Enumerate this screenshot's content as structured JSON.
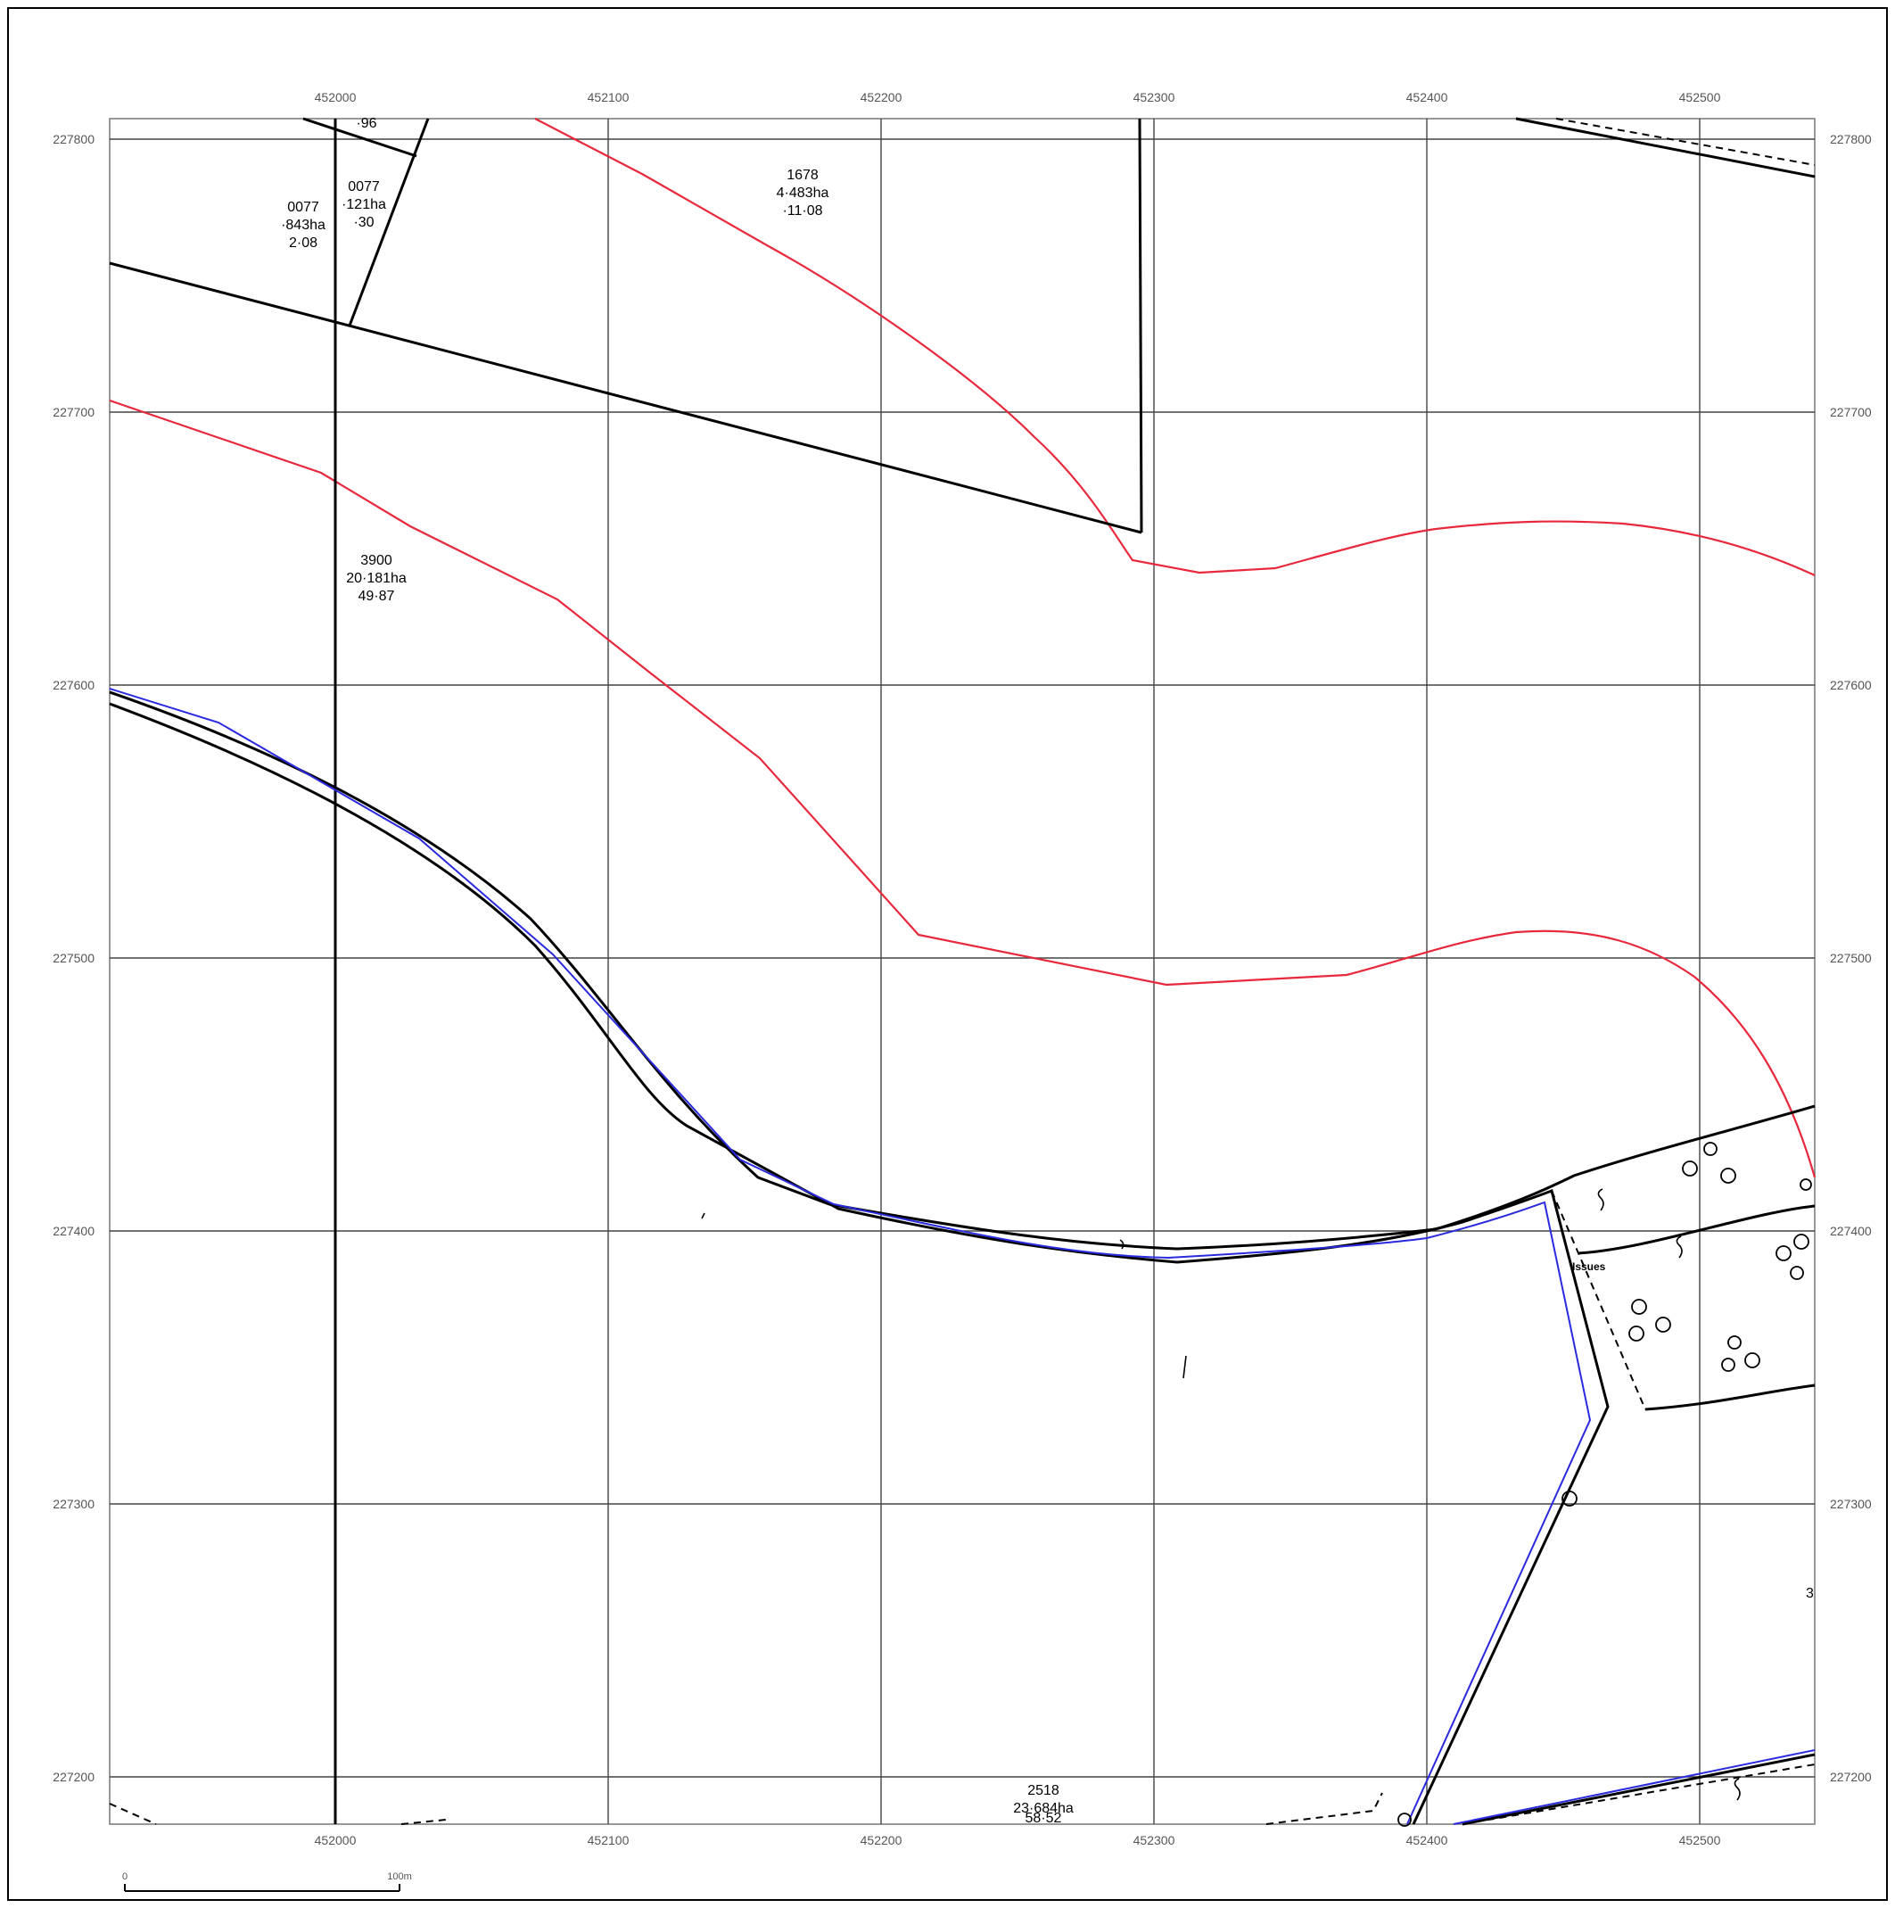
{
  "map": {
    "grid": {
      "eastings": [
        "452000",
        "452100",
        "452200",
        "452300",
        "452400",
        "452500"
      ],
      "northings": [
        "227800",
        "227700",
        "227600",
        "227500",
        "227400",
        "227300",
        "227200"
      ]
    },
    "parcels": [
      {
        "lines": [
          "·96"
        ]
      },
      {
        "lines": [
          "0077",
          "·843ha",
          "2·08"
        ]
      },
      {
        "lines": [
          "0077",
          "·121ha",
          "·30"
        ]
      },
      {
        "lines": [
          "1678",
          "4·483ha",
          "·11·08"
        ]
      },
      {
        "lines": [
          "3900",
          "20·181ha",
          "49·87"
        ]
      },
      {
        "lines": [
          "2518",
          "23·684ha",
          "58·52"
        ]
      }
    ],
    "annotations": {
      "issues": "Issues",
      "edge_numeral": "3"
    },
    "scale_bar": {
      "start": "0",
      "end": "100m"
    },
    "colors": {
      "grid": "#444444",
      "boundary": "#000000",
      "red_line": "#e8283c",
      "blue_line": "#2a2ae0"
    },
    "icons": [
      "tree-icon",
      "spring-symbol-icon"
    ]
  }
}
